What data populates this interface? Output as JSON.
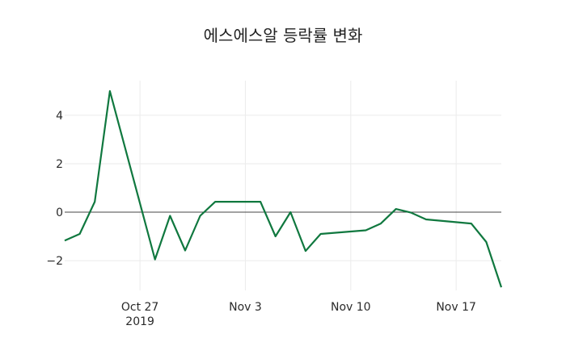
{
  "chart_data": {
    "type": "line",
    "title": "에스에스알 등락률 변화",
    "xlabel": "",
    "ylabel": "",
    "x": [
      "2019-10-22",
      "2019-10-23",
      "2019-10-24",
      "2019-10-25",
      "2019-10-28",
      "2019-10-29",
      "2019-10-30",
      "2019-10-31",
      "2019-11-01",
      "2019-11-04",
      "2019-11-05",
      "2019-11-06",
      "2019-11-07",
      "2019-11-08",
      "2019-11-11",
      "2019-11-12",
      "2019-11-13",
      "2019-11-14",
      "2019-11-15",
      "2019-11-18",
      "2019-11-19",
      "2019-11-20"
    ],
    "series": [
      {
        "name": "등락률",
        "color": "#10783f",
        "values": [
          -1.17,
          -0.9,
          0.43,
          5.0,
          -1.95,
          -0.15,
          -1.58,
          -0.15,
          0.43,
          0.43,
          -1.0,
          0.0,
          -1.6,
          -0.9,
          -0.75,
          -0.47,
          0.13,
          -0.02,
          -0.3,
          -0.47,
          -1.23,
          -3.1
        ]
      }
    ],
    "xlim": [
      "2019-10-22",
      "2019-11-20"
    ],
    "ylim": [
      -3.23,
      5.43
    ],
    "x_ticks": [
      {
        "date": "2019-10-27",
        "label": "Oct 27",
        "sublabel": "2019"
      },
      {
        "date": "2019-11-03",
        "label": "Nov 3"
      },
      {
        "date": "2019-11-10",
        "label": "Nov 10"
      },
      {
        "date": "2019-11-17",
        "label": "Nov 17"
      }
    ],
    "y_ticks": [
      -2,
      0,
      2,
      4
    ],
    "y_tick_labels": [
      "−2",
      "0",
      "2",
      "4"
    ],
    "grid": true,
    "zero_line": true,
    "legend": "none"
  }
}
